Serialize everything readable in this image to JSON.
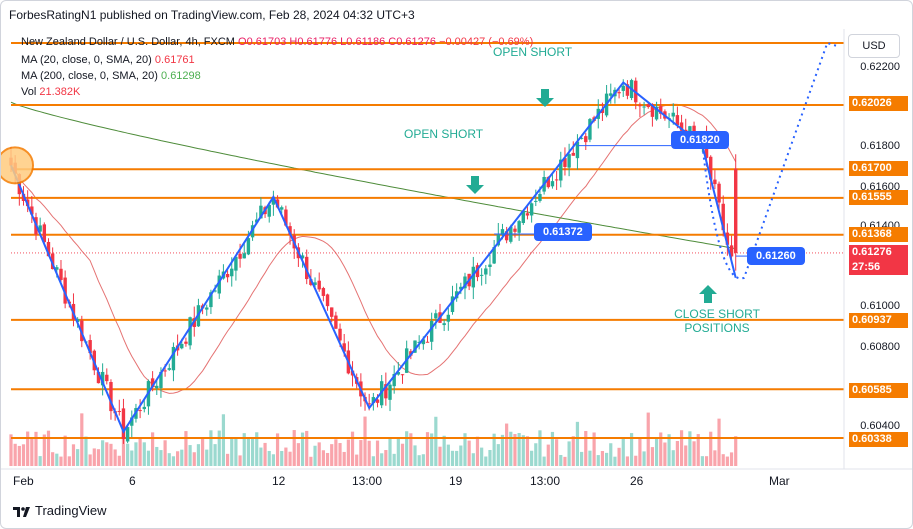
{
  "publisher_line": "ForbesRatingN1 published on TradingView.com, Feb 28, 2024 04:32 UTC+3",
  "legend": {
    "symbol": "New Zealand Dollar / U.S. Dollar, 4h, FXCM",
    "ohlc": "O0.61703 H0.61776 L0.61186 C0.61276",
    "change": "−0.00427 (−0.69%)",
    "ma20_label": "MA (20, close, 0, SMA, 20)",
    "ma20_value": "0.61761",
    "ma200_label": "MA (200, close, 0, SMA, 20)",
    "ma200_value": "0.61298",
    "vol_label": "Vol",
    "vol_value": "21.382K"
  },
  "currency_button": "USD",
  "annotations": {
    "open_short_top": "OPEN SHORT",
    "open_short_mid": "OPEN SHORT",
    "close_short_line1": "CLOSE SHORT",
    "close_short_line2": "POSITIONS",
    "callout_1": "0.61820",
    "callout_2": "0.61372",
    "callout_3": "0.61260"
  },
  "price_axis": {
    "ticks": [
      "0.62200",
      "0.61800",
      "0.61600",
      "0.61400",
      "0.61000",
      "0.60800",
      "0.60400"
    ],
    "level_tags": [
      "0.62026",
      "0.61700",
      "0.61555",
      "0.61368",
      "0.60937",
      "0.60585",
      "0.60338"
    ],
    "current_price": "0.61276",
    "countdown": "27:56"
  },
  "time_axis": [
    "Feb",
    "6",
    "12",
    "13:00",
    "19",
    "13:00",
    "26",
    "Mar"
  ],
  "footer": "TradingView",
  "colors": {
    "up": "#22ab94",
    "down": "#f23645",
    "level": "#f57c00",
    "zigzag": "#2962ff",
    "ma20": "#e57373",
    "ma200": "#4e8c3a"
  },
  "chart_data": {
    "type": "candlestick",
    "symbol": "New Zealand Dollar / U.S. Dollar",
    "timeframe": "4h",
    "horizontal_levels": [
      0.6234,
      0.62026,
      0.617,
      0.61555,
      0.61368,
      0.60937,
      0.60585,
      0.60338
    ],
    "zigzag_path": [
      {
        "t": 0,
        "price": 0.6172
      },
      {
        "t": 27,
        "price": 0.6037
      },
      {
        "t": 63,
        "price": 0.6156
      },
      {
        "t": 86,
        "price": 0.6049
      },
      {
        "t": 147,
        "price": 0.6214
      },
      {
        "t": 166,
        "price": 0.6182
      },
      {
        "t": 174,
        "price": 0.6115
      }
    ],
    "projection_path": [
      {
        "t": 176,
        "price": 0.6115
      },
      {
        "t": 196,
        "price": 0.6234
      },
      {
        "t": 199,
        "price": 0.6232
      }
    ],
    "ohlc_last": {
      "open": 0.61703,
      "high": 0.61776,
      "low": 0.61186,
      "close": 0.61276
    },
    "ma20_last": 0.61761,
    "ma200_last": 0.61298,
    "volume_last": "21.382K",
    "ylim": [
      0.6022,
      0.6238
    ]
  }
}
